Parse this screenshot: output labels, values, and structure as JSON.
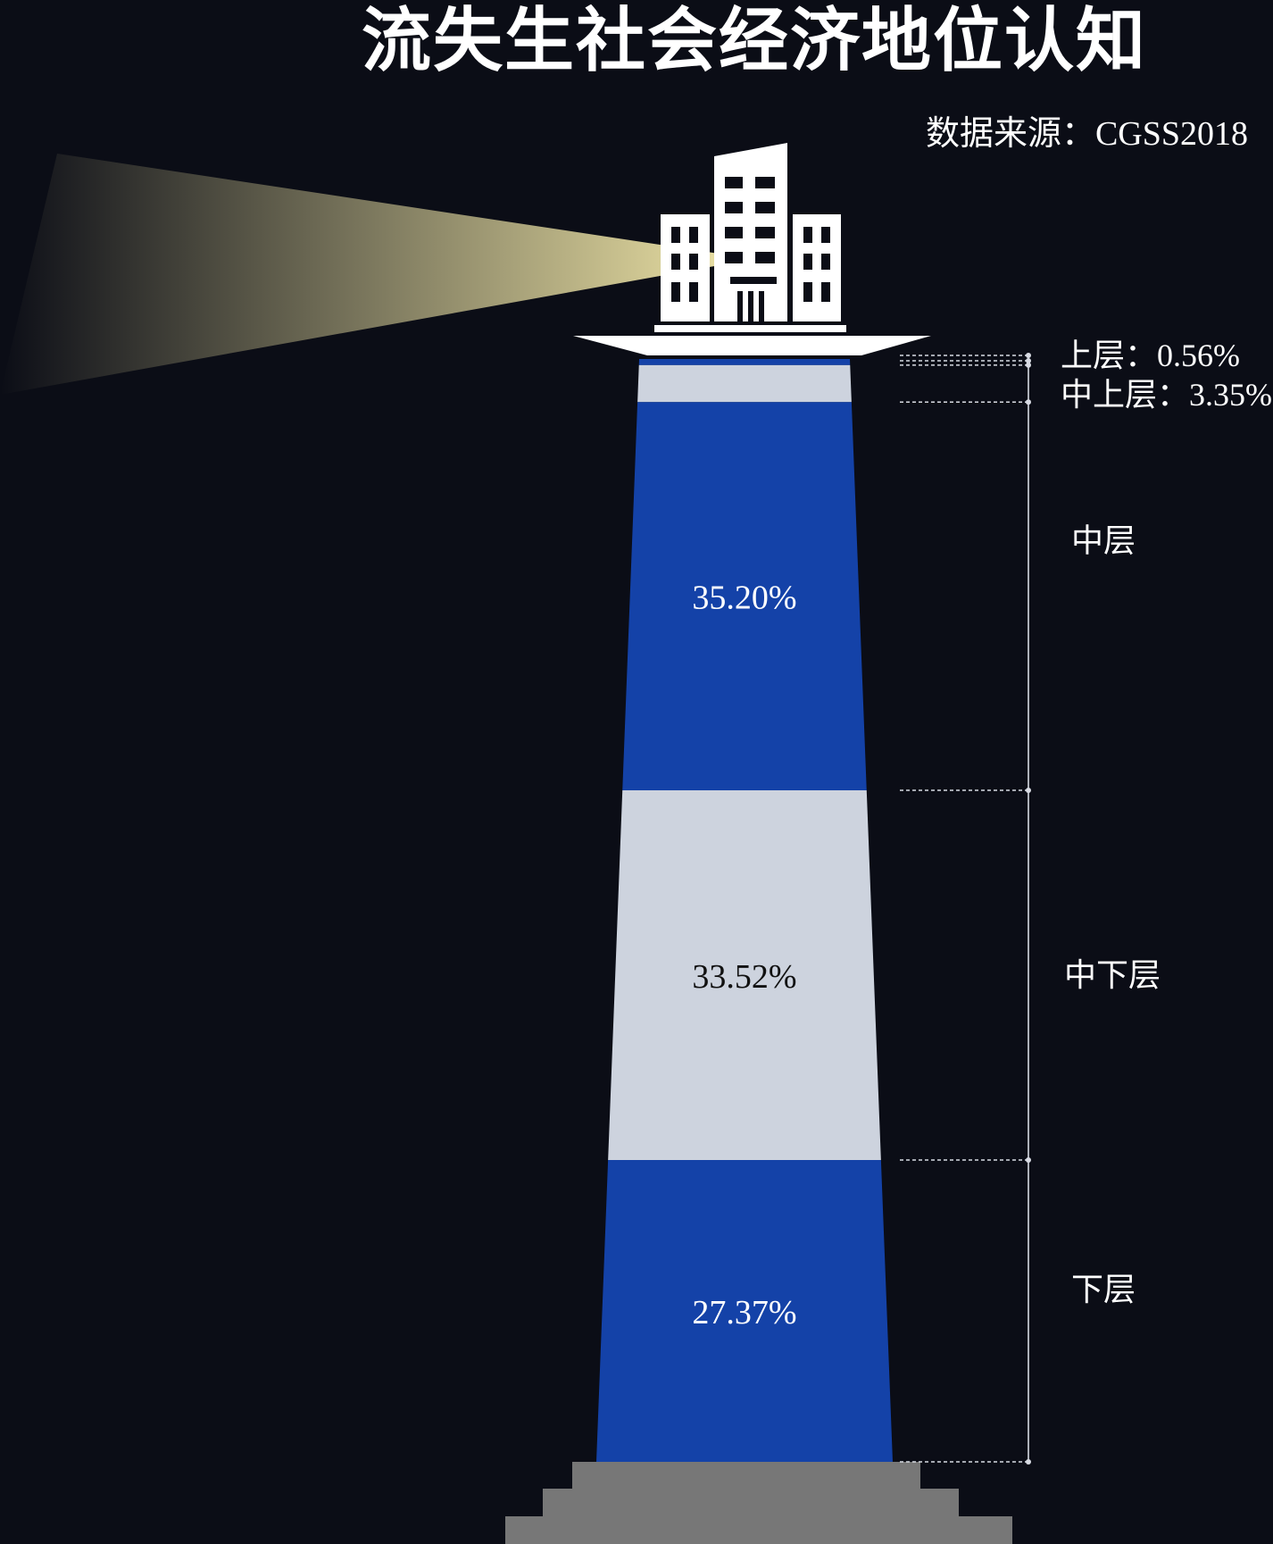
{
  "title": "流失生社会经济地位认知",
  "source": "数据来源：CGSS2018",
  "colors": {
    "background": "#0b0d16",
    "blue": "#1442a8",
    "light": "#cdd3de",
    "base": "#777777",
    "white": "#ffffff",
    "beam": "#f1e7a8"
  },
  "chart_data": {
    "type": "bar",
    "subtype": "stacked-column-lighthouse",
    "categories": [
      "上层",
      "中上层",
      "中层",
      "中下层",
      "下层"
    ],
    "values": [
      0.56,
      3.35,
      35.2,
      33.52,
      27.37
    ],
    "unit": "%",
    "labels": {
      "inside": [
        "",
        "",
        "35.20%",
        "33.52%",
        "27.37%"
      ],
      "side": [
        "上层：0.56%",
        "中上层：3.35%",
        "中层",
        "中下层",
        "下层"
      ]
    },
    "segment_colors": [
      "#1442a8",
      "#cdd3de",
      "#1442a8",
      "#cdd3de",
      "#1442a8"
    ],
    "inside_label_colors": [
      "#ffffff",
      "#111111",
      "#ffffff",
      "#111111",
      "#ffffff"
    ],
    "icon": "city-buildings-icon"
  }
}
